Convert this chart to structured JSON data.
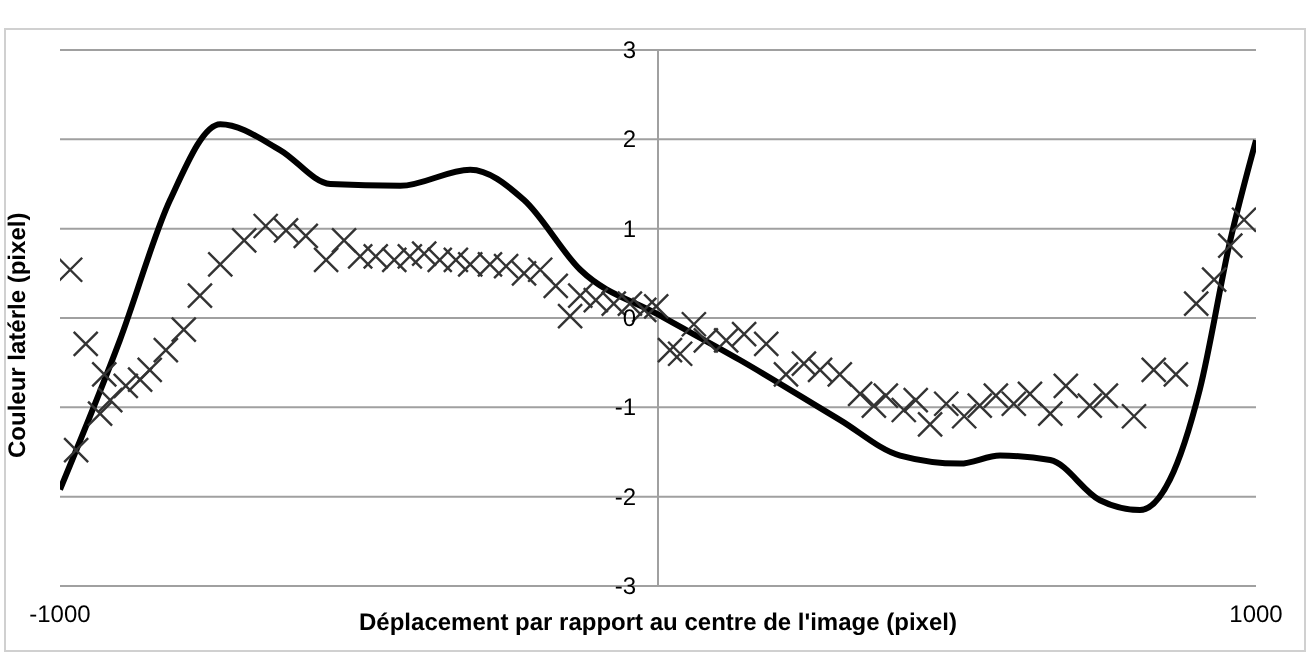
{
  "chart_data": {
    "type": "scatter",
    "xlabel": "Déplacement par rapport au centre de l'image (pixel)",
    "ylabel": "Couleur latérle (pixel)",
    "xlim": [
      -1000,
      1000
    ],
    "xticks": [
      -1000,
      1000
    ],
    "ylim": [
      -3,
      3
    ],
    "yticks": [
      -3,
      -2,
      -1,
      0,
      1,
      2,
      3
    ],
    "grid": "y",
    "series": [
      {
        "marker": "cross",
        "color": "#333333",
        "x": [
          -983,
          -957,
          -973,
          -926,
          -933,
          -916,
          -890,
          -866,
          -850,
          -823,
          -793,
          -766,
          -732,
          -692,
          -656,
          -622,
          -589,
          -555,
          -525,
          -498,
          -472,
          -441,
          -415,
          -391,
          -365,
          -338,
          -314,
          -281,
          -254,
          -224,
          -197,
          -171,
          -147,
          -130,
          -104,
          -74,
          -47,
          -23,
          -3,
          20,
          37,
          60,
          80,
          114,
          144,
          181,
          214,
          244,
          271,
          304,
          338,
          361,
          381,
          411,
          431,
          455,
          482,
          512,
          538,
          565,
          595,
          622,
          656,
          682,
          722,
          749,
          796,
          829,
          866,
          900,
          930,
          957,
          980
        ],
        "values": [
          0.54,
          -0.29,
          -1.48,
          -0.63,
          -1.07,
          -0.92,
          -0.76,
          -0.69,
          -0.58,
          -0.36,
          -0.13,
          0.25,
          0.6,
          0.87,
          1.03,
          0.98,
          0.92,
          0.65,
          0.87,
          0.69,
          0.69,
          0.65,
          0.69,
          0.72,
          0.65,
          0.65,
          0.6,
          0.6,
          0.58,
          0.5,
          0.54,
          0.36,
          0.02,
          0.25,
          0.2,
          0.16,
          0.16,
          0.09,
          0.13,
          -0.36,
          -0.4,
          -0.07,
          -0.25,
          -0.25,
          -0.18,
          -0.29,
          -0.63,
          -0.51,
          -0.58,
          -0.63,
          -0.85,
          -0.98,
          -0.87,
          -1.03,
          -0.92,
          -1.19,
          -0.96,
          -1.1,
          -0.98,
          -0.87,
          -0.96,
          -0.85,
          -1.07,
          -0.76,
          -0.98,
          -0.87,
          -1.1,
          -0.58,
          -0.63,
          0.16,
          0.43,
          0.81,
          1.1
        ]
      },
      {
        "type": "line",
        "marker": "none",
        "line_style": "solid",
        "color": "#000000",
        "x": [
          -1000,
          -900,
          -816,
          -732,
          -632,
          -548,
          -431,
          -314,
          -224,
          -130,
          0,
          137,
          304,
          405,
          505,
          572,
          656,
          739,
          806,
          856,
          906,
          957,
          1000
        ],
        "values": [
          -1.92,
          -0.25,
          1.32,
          2.17,
          1.88,
          1.5,
          1.48,
          1.66,
          1.32,
          0.54,
          0.04,
          -0.47,
          -1.14,
          -1.54,
          -1.63,
          -1.54,
          -1.59,
          -2.04,
          -2.15,
          -1.81,
          -0.8,
          0.87,
          1.99
        ]
      }
    ]
  }
}
